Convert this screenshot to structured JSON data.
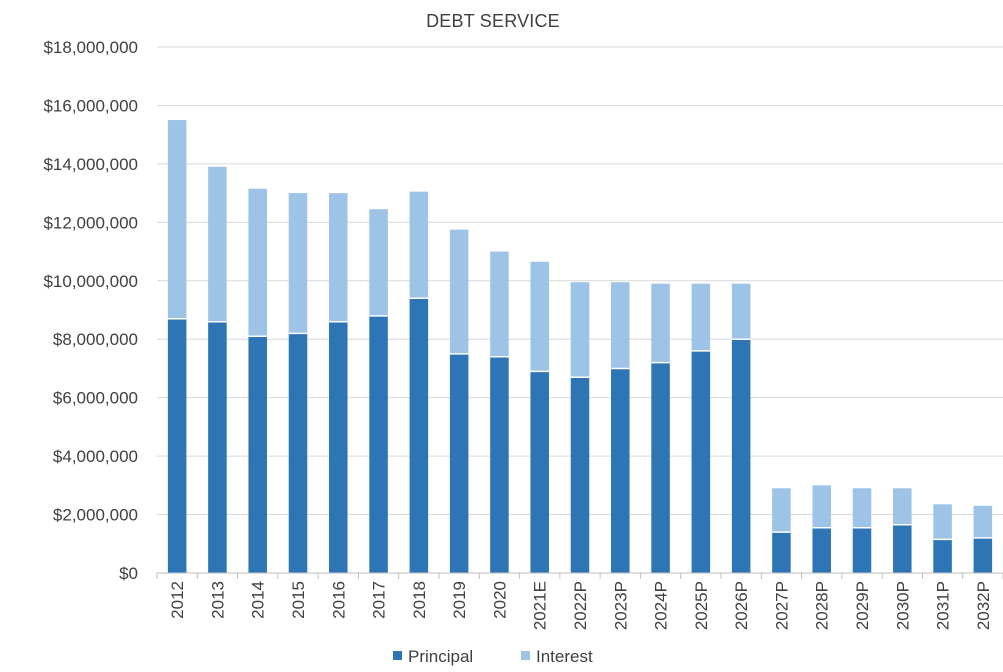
{
  "chart_data": {
    "type": "bar",
    "stacked": true,
    "title": "DEBT SERVICE",
    "xlabel": "",
    "ylabel": "",
    "ylim": [
      0,
      18000000
    ],
    "y_ticks": [
      0,
      2000000,
      4000000,
      6000000,
      8000000,
      10000000,
      12000000,
      14000000,
      16000000,
      18000000
    ],
    "y_tick_labels": [
      "$0",
      "$2,000,000",
      "$4,000,000",
      "$6,000,000",
      "$8,000,000",
      "$10,000,000",
      "$12,000,000",
      "$14,000,000",
      "$16,000,000",
      "$18,000,000"
    ],
    "grid": true,
    "legend_position": "bottom",
    "categories": [
      "2012",
      "2013",
      "2014",
      "2015",
      "2016",
      "2017",
      "2018",
      "2019",
      "2020",
      "2021E",
      "2022P",
      "2023P",
      "2024P",
      "2025P",
      "2026P",
      "2027P",
      "2028P",
      "2029P",
      "2030P",
      "2031P",
      "2032P"
    ],
    "series": [
      {
        "name": "Principal",
        "color": "#2e75b6",
        "values": [
          8700000,
          8600000,
          8100000,
          8200000,
          8600000,
          8800000,
          9400000,
          7500000,
          7400000,
          6900000,
          6700000,
          7000000,
          7200000,
          7600000,
          8000000,
          1400000,
          1550000,
          1550000,
          1650000,
          1150000,
          1200000
        ]
      },
      {
        "name": "Interest",
        "color": "#9dc3e6",
        "values": [
          6800000,
          5300000,
          5050000,
          4800000,
          4400000,
          3650000,
          3650000,
          4250000,
          3600000,
          3750000,
          3250000,
          2950000,
          2700000,
          2300000,
          1900000,
          1500000,
          1450000,
          1350000,
          1250000,
          1200000,
          1100000
        ]
      }
    ]
  }
}
